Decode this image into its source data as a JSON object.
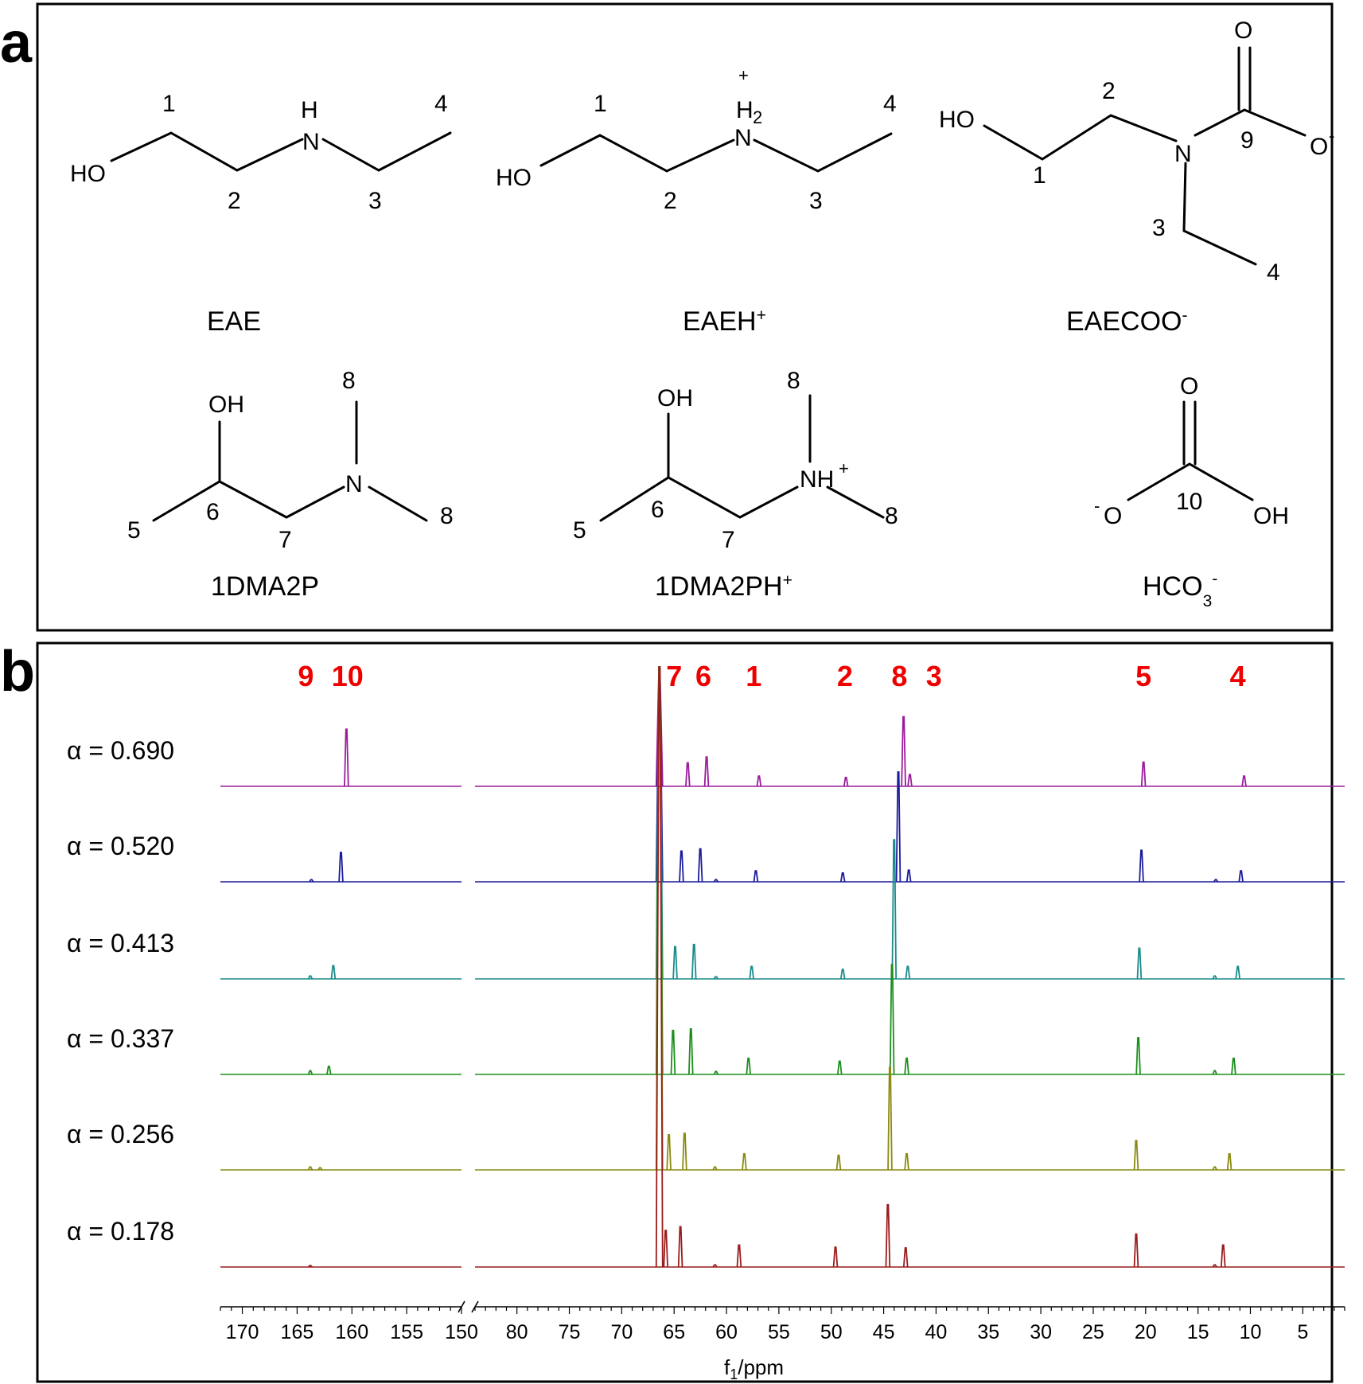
{
  "panel_labels": {
    "a": "a",
    "b": "b"
  },
  "panel_a": {
    "compounds": [
      {
        "name": "EAE",
        "charge": ""
      },
      {
        "name": "EAEH",
        "charge": "+"
      },
      {
        "name": "EAECOO",
        "charge": "-"
      },
      {
        "name": "1DMA2P",
        "charge": ""
      },
      {
        "name": "1DMA2PH",
        "charge": "+"
      },
      {
        "name": "HCO",
        "sub": "3",
        "charge": "-"
      }
    ],
    "atoms": {
      "HO": "HO",
      "OH": "OH",
      "H": "H",
      "N": "N",
      "H2": "H",
      "two": "2",
      "NH": "NH",
      "O": "O",
      "plus": "+",
      "minus": "-"
    },
    "carbon_numbers": [
      "1",
      "2",
      "3",
      "4",
      "5",
      "6",
      "7",
      "8",
      "9",
      "10"
    ]
  },
  "chart_data": {
    "type": "line",
    "xlabel": "f",
    "xlabel_sub": "1",
    "xlabel_unit": "/ppm",
    "x_reversed": true,
    "x_segments": [
      {
        "range": [
          172,
          150
        ]
      },
      {
        "range": [
          84,
          1
        ]
      }
    ],
    "x_ticks": [
      170,
      165,
      160,
      155,
      150,
      80,
      75,
      70,
      65,
      60,
      55,
      50,
      45,
      40,
      35,
      30,
      25,
      20,
      15,
      10,
      5
    ],
    "peak_labels": [
      {
        "label": "9",
        "ppm": 164.2
      },
      {
        "label": "10",
        "ppm": 160.4
      },
      {
        "label": "7",
        "ppm": 65.0
      },
      {
        "label": "6",
        "ppm": 62.2
      },
      {
        "label": "1",
        "ppm": 57.4
      },
      {
        "label": "2",
        "ppm": 48.7
      },
      {
        "label": "8",
        "ppm": 43.5
      },
      {
        "label": "3",
        "ppm": 40.2
      },
      {
        "label": "5",
        "ppm": 20.2
      },
      {
        "label": "4",
        "ppm": 11.2
      }
    ],
    "series": [
      {
        "name": "α = 0.690",
        "color": "#9b1c9b",
        "peaks": [
          [
            160.5,
            0.78
          ],
          [
            66.4,
            9.0
          ],
          [
            63.7,
            0.32
          ],
          [
            61.9,
            0.4
          ],
          [
            56.9,
            0.14
          ],
          [
            48.6,
            0.12
          ],
          [
            43.1,
            0.95
          ],
          [
            42.5,
            0.16
          ],
          [
            20.2,
            0.33
          ],
          [
            10.6,
            0.14
          ]
        ]
      },
      {
        "name": "α = 0.520",
        "color": "#1c1c9b",
        "peaks": [
          [
            163.7,
            0.03
          ],
          [
            161.0,
            0.4
          ],
          [
            66.4,
            9.0
          ],
          [
            64.3,
            0.42
          ],
          [
            62.5,
            0.45
          ],
          [
            61.0,
            0.03
          ],
          [
            57.2,
            0.15
          ],
          [
            48.9,
            0.12
          ],
          [
            43.6,
            1.5
          ],
          [
            42.6,
            0.16
          ],
          [
            20.4,
            0.43
          ],
          [
            13.3,
            0.03
          ],
          [
            10.9,
            0.15
          ]
        ]
      },
      {
        "name": "α = 0.413",
        "color": "#1b8b8b",
        "peaks": [
          [
            163.8,
            0.04
          ],
          [
            161.7,
            0.18
          ],
          [
            66.4,
            9.0
          ],
          [
            64.9,
            0.44
          ],
          [
            63.1,
            0.47
          ],
          [
            61.0,
            0.03
          ],
          [
            57.6,
            0.17
          ],
          [
            48.9,
            0.13
          ],
          [
            44.0,
            1.9
          ],
          [
            42.7,
            0.17
          ],
          [
            20.6,
            0.42
          ],
          [
            13.4,
            0.04
          ],
          [
            11.2,
            0.17
          ]
        ]
      },
      {
        "name": "α = 0.337",
        "color": "#1d8f1d",
        "peaks": [
          [
            163.8,
            0.05
          ],
          [
            162.1,
            0.11
          ],
          [
            66.4,
            9.0
          ],
          [
            65.1,
            0.6
          ],
          [
            63.4,
            0.62
          ],
          [
            61.0,
            0.04
          ],
          [
            57.9,
            0.22
          ],
          [
            49.2,
            0.18
          ],
          [
            44.2,
            1.5
          ],
          [
            42.8,
            0.22
          ],
          [
            20.7,
            0.5
          ],
          [
            13.4,
            0.05
          ],
          [
            11.6,
            0.22
          ]
        ]
      },
      {
        "name": "α = 0.256",
        "color": "#8a8a10",
        "peaks": [
          [
            163.8,
            0.04
          ],
          [
            162.9,
            0.03
          ],
          [
            66.4,
            9.0
          ],
          [
            65.5,
            0.48
          ],
          [
            64.0,
            0.5
          ],
          [
            61.1,
            0.04
          ],
          [
            58.3,
            0.22
          ],
          [
            49.3,
            0.2
          ],
          [
            44.4,
            1.4
          ],
          [
            42.8,
            0.22
          ],
          [
            20.9,
            0.4
          ],
          [
            13.4,
            0.04
          ],
          [
            12.0,
            0.22
          ]
        ]
      },
      {
        "name": "α = 0.178",
        "color": "#9b1c1c",
        "peaks": [
          [
            163.8,
            0.02
          ],
          [
            66.4,
            9.0
          ],
          [
            65.8,
            0.5
          ],
          [
            64.4,
            0.55
          ],
          [
            61.1,
            0.03
          ],
          [
            58.8,
            0.3
          ],
          [
            49.6,
            0.27
          ],
          [
            44.6,
            0.85
          ],
          [
            42.9,
            0.26
          ],
          [
            20.9,
            0.45
          ],
          [
            13.4,
            0.03
          ],
          [
            12.6,
            0.3
          ]
        ]
      }
    ]
  }
}
